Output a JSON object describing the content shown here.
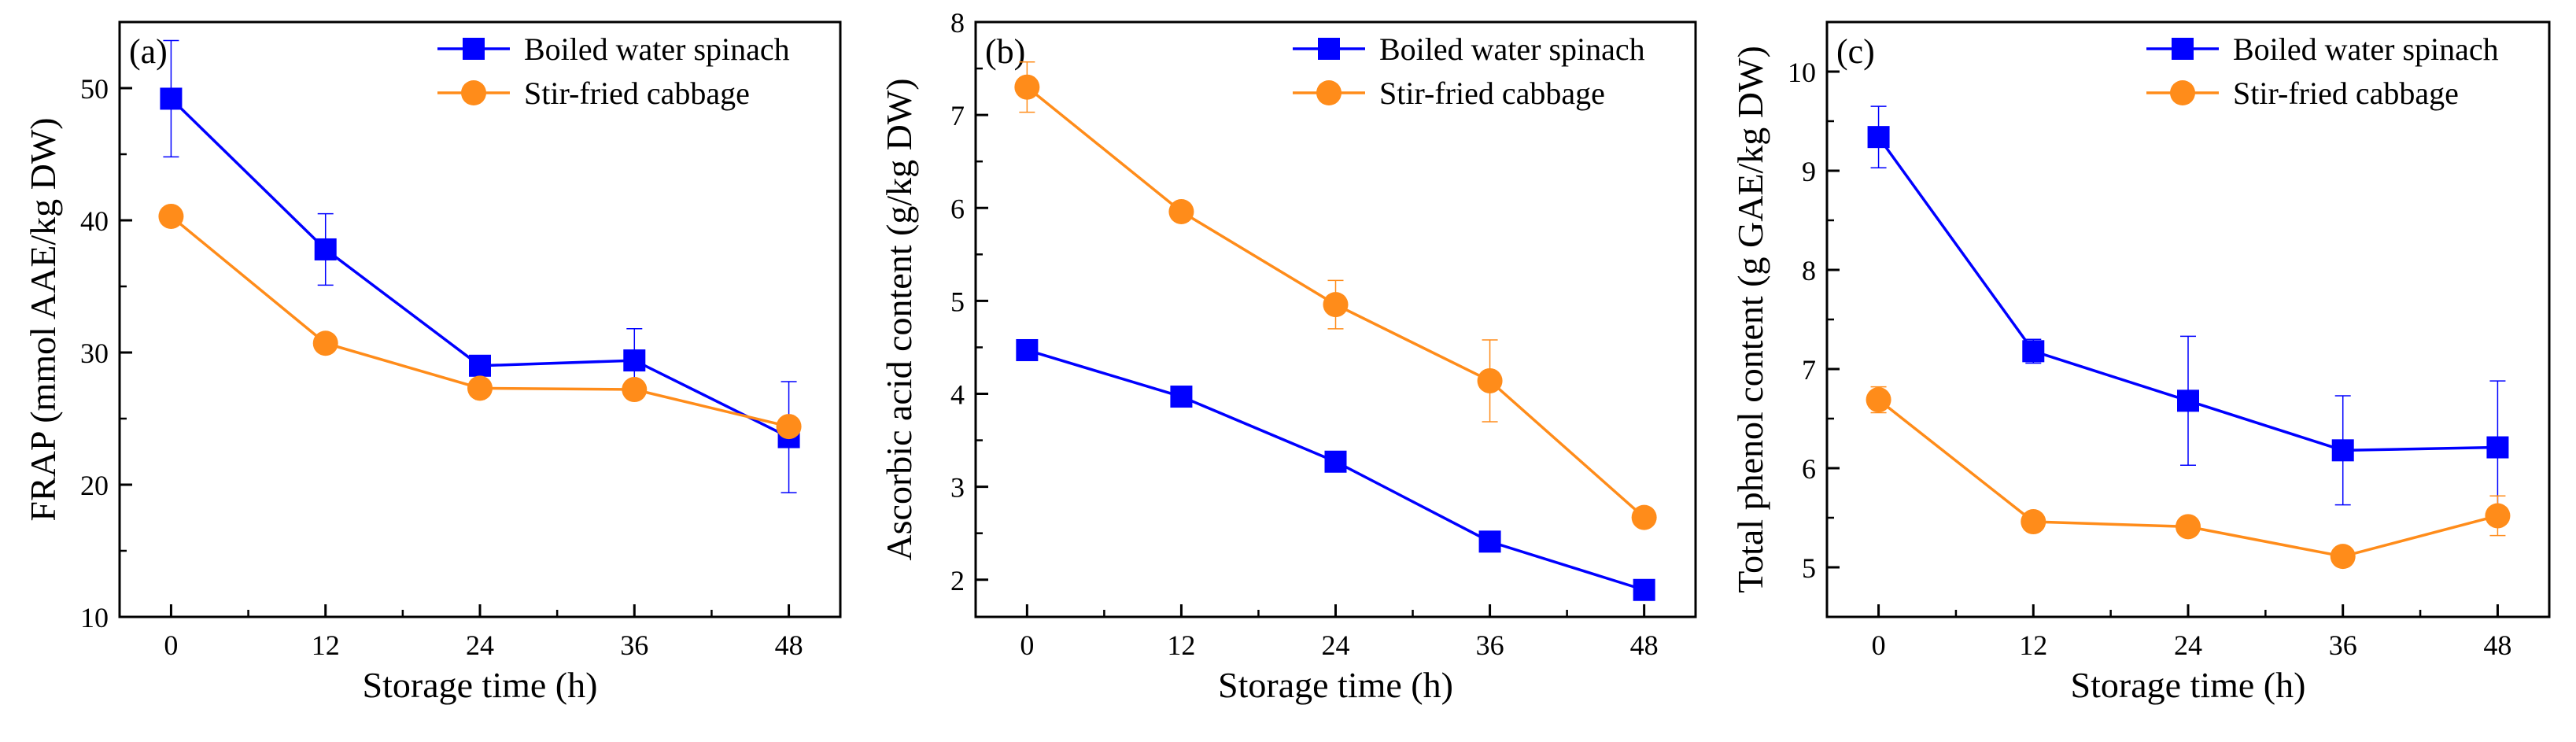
{
  "chart_data": [
    {
      "type": "line",
      "panel_label": "(a)",
      "xlabel": "Storage time (h)",
      "ylabel": "FRAP (mmol AAE/kg DW)",
      "xlim": [
        -4,
        52
      ],
      "ylim": [
        10,
        55
      ],
      "xticks": [
        0,
        12,
        24,
        36,
        48
      ],
      "yticks": [
        10,
        20,
        30,
        40,
        50
      ],
      "legend_position": "top-right",
      "x": [
        0,
        12,
        24,
        36,
        48
      ],
      "series": [
        {
          "name": "Boiled water spinach",
          "color": "#0000ff",
          "marker": "square",
          "values": [
            49.2,
            37.8,
            29.0,
            29.4,
            23.6
          ],
          "errors": [
            4.4,
            2.7,
            0.4,
            2.4,
            4.2
          ]
        },
        {
          "name": "Stir-fried cabbage",
          "color": "#ff8c1a",
          "marker": "circle",
          "values": [
            40.3,
            30.7,
            27.3,
            27.2,
            24.4
          ],
          "errors": [
            0.5,
            0.4,
            0.3,
            0.4,
            0.5
          ]
        }
      ]
    },
    {
      "type": "line",
      "panel_label": "(b)",
      "xlabel": "Storage time (h)",
      "ylabel": "Ascorbic acid content (g/kg DW)",
      "xlim": [
        -4,
        52
      ],
      "ylim": [
        1.6,
        8
      ],
      "xticks": [
        0,
        12,
        24,
        36,
        48
      ],
      "yticks": [
        2,
        3,
        4,
        5,
        6,
        7,
        8
      ],
      "legend_position": "top-right",
      "x": [
        0,
        12,
        24,
        36,
        48
      ],
      "series": [
        {
          "name": "Boiled water spinach",
          "color": "#0000ff",
          "marker": "square",
          "values": [
            4.47,
            3.97,
            3.27,
            2.41,
            1.89
          ],
          "errors": [
            0.05,
            0.05,
            0.1,
            0.05,
            0.03
          ]
        },
        {
          "name": "Stir-fried cabbage",
          "color": "#ff8c1a",
          "marker": "circle",
          "values": [
            7.3,
            5.96,
            4.96,
            4.14,
            2.67
          ],
          "errors": [
            0.27,
            0.07,
            0.26,
            0.44,
            0.05
          ]
        }
      ]
    },
    {
      "type": "line",
      "panel_label": "(c)",
      "xlabel": "Storage time (h)",
      "ylabel": "Total phenol content (g GAE/kg DW)",
      "xlim": [
        -4,
        52
      ],
      "ylim": [
        4.5,
        10.5
      ],
      "xticks": [
        0,
        12,
        24,
        36,
        48
      ],
      "yticks": [
        5,
        6,
        7,
        8,
        9,
        10
      ],
      "legend_position": "top-right",
      "x": [
        0,
        12,
        24,
        36,
        48
      ],
      "series": [
        {
          "name": "Boiled water spinach",
          "color": "#0000ff",
          "marker": "square",
          "values": [
            9.34,
            7.18,
            6.68,
            6.18,
            6.21
          ],
          "errors": [
            0.31,
            0.12,
            0.65,
            0.55,
            0.67
          ]
        },
        {
          "name": "Stir-fried cabbage",
          "color": "#ff8c1a",
          "marker": "circle",
          "values": [
            6.69,
            5.46,
            5.41,
            5.11,
            5.52
          ],
          "errors": [
            0.13,
            0.05,
            0.05,
            0.05,
            0.2
          ]
        }
      ]
    }
  ]
}
